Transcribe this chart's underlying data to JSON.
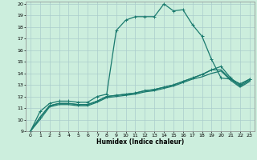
{
  "title": "",
  "xlabel": "Humidex (Indice chaleur)",
  "ylabel": "",
  "bg_color": "#cceedd",
  "grid_color": "#aacccc",
  "line_color": "#1a7a6e",
  "xlim": [
    -0.5,
    23.5
  ],
  "ylim": [
    9,
    20.2
  ],
  "xticks": [
    0,
    1,
    2,
    3,
    4,
    5,
    6,
    7,
    8,
    9,
    10,
    11,
    12,
    13,
    14,
    15,
    16,
    17,
    18,
    19,
    20,
    21,
    22,
    23
  ],
  "yticks": [
    9,
    10,
    11,
    12,
    13,
    14,
    15,
    16,
    17,
    18,
    19,
    20
  ],
  "line1_x": [
    0,
    1,
    2,
    3,
    4,
    5,
    6,
    7,
    8,
    9,
    10,
    11,
    12,
    13,
    14,
    15,
    16,
    17,
    18,
    19,
    20,
    21,
    22,
    23
  ],
  "line1_y": [
    9,
    10.7,
    11.4,
    11.6,
    11.6,
    11.5,
    11.5,
    12.0,
    12.2,
    17.7,
    18.6,
    18.9,
    18.9,
    18.9,
    20.0,
    19.4,
    19.5,
    18.2,
    17.2,
    15.2,
    13.6,
    13.5,
    13.1,
    13.5
  ],
  "line2_x": [
    0,
    1,
    2,
    3,
    4,
    5,
    6,
    7,
    8,
    9,
    10,
    11,
    12,
    13,
    14,
    15,
    16,
    17,
    18,
    19,
    20,
    21,
    22,
    23
  ],
  "line2_y": [
    9,
    10.2,
    11.2,
    11.4,
    11.4,
    11.3,
    11.3,
    11.6,
    12.0,
    12.1,
    12.2,
    12.3,
    12.5,
    12.6,
    12.8,
    13.0,
    13.3,
    13.6,
    13.9,
    14.3,
    14.6,
    13.6,
    13.0,
    13.5
  ],
  "line3_x": [
    0,
    1,
    2,
    3,
    4,
    5,
    6,
    7,
    8,
    9,
    10,
    11,
    12,
    13,
    14,
    15,
    16,
    17,
    18,
    19,
    20,
    21,
    22,
    23
  ],
  "line3_y": [
    9,
    10.2,
    11.2,
    11.4,
    11.4,
    11.3,
    11.3,
    11.6,
    12.0,
    12.1,
    12.2,
    12.3,
    12.5,
    12.6,
    12.8,
    13.0,
    13.3,
    13.6,
    13.9,
    14.3,
    14.3,
    13.5,
    12.9,
    13.4
  ],
  "line4_x": [
    0,
    1,
    2,
    3,
    4,
    5,
    6,
    7,
    8,
    9,
    10,
    11,
    12,
    13,
    14,
    15,
    16,
    17,
    18,
    19,
    20,
    21,
    22,
    23
  ],
  "line4_y": [
    9,
    10.0,
    11.1,
    11.3,
    11.3,
    11.2,
    11.2,
    11.5,
    11.9,
    12.0,
    12.1,
    12.2,
    12.4,
    12.5,
    12.7,
    12.9,
    13.2,
    13.5,
    13.7,
    14.0,
    14.2,
    13.4,
    12.8,
    13.3
  ],
  "tick_fontsize": 4.5,
  "xlabel_fontsize": 5.5
}
